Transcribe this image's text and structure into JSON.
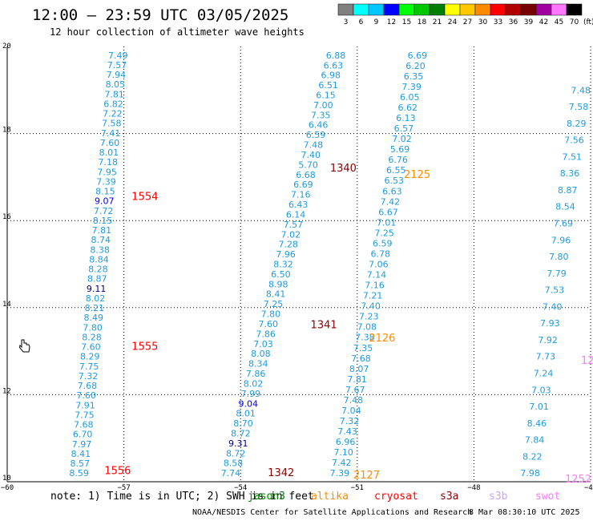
{
  "title": "12:00 – 23:59 UTC 03/05/2025",
  "subtitle": "12 hour collection of altimeter wave heights",
  "note": "note: 1) Time is in UTC; 2) SWH is in feet",
  "credit": "NOAA/NESDIS Center for Satellite Applications and Research",
  "credit_date": "8 Mar 08:30:10 UTC 2025",
  "missions": [
    {
      "name": "jason3",
      "label": "jason3",
      "color": "#008000"
    },
    {
      "name": "altika",
      "label": "altika",
      "color": "#ff8c00"
    },
    {
      "name": "cryosat",
      "label": "cryosat",
      "color": "#ff0000"
    },
    {
      "name": "s3a",
      "label": "s3a",
      "color": "#8b0000"
    },
    {
      "name": "s3b",
      "label": "s3b",
      "color": "#c8a2ff"
    },
    {
      "name": "swot",
      "label": "swot",
      "color": "#ff77ff"
    }
  ],
  "colorbar": {
    "unit": "(ft)",
    "thresholds": [
      "3",
      "6",
      "9",
      "12",
      "15",
      "18",
      "21",
      "24",
      "27",
      "30",
      "33",
      "36",
      "39",
      "42",
      "45",
      "70"
    ],
    "colors": [
      "#808080",
      "#00ffff",
      "#00c8ff",
      "#0000ff",
      "#00ff00",
      "#00c800",
      "#008000",
      "#ffff00",
      "#ffc800",
      "#ff8c00",
      "#ff0000",
      "#b00000",
      "#780000",
      "#a000a0",
      "#ff77ff",
      "#000000"
    ]
  },
  "chart_data": {
    "type": "scatter",
    "xlabel": "",
    "ylabel": "",
    "xlim": [
      -60,
      -45
    ],
    "ylim": [
      10,
      20
    ],
    "xticks": [
      -60,
      -57,
      -54,
      -51,
      -48,
      -45
    ],
    "yticks": [
      10,
      12,
      14,
      16,
      18,
      20
    ],
    "xtick_labels": [
      "−60",
      "−57",
      "−54",
      "−51",
      "−48",
      "−45"
    ],
    "ytick_labels": [
      "10",
      "12",
      "14",
      "16",
      "18",
      "20"
    ],
    "grid": true,
    "tracks": [
      {
        "pass": "1554",
        "pass_color": "#ff0000",
        "label_at": [
          -56.8,
          16.55
        ],
        "start": [
          -56.9,
          19.8
        ],
        "end": [
          -57.9,
          10.2
        ],
        "values": [
          "7.49",
          "7.57",
          "7.94",
          "8.05",
          "7.81",
          "6.82",
          "7.22",
          "7.58",
          "7.41",
          "7.60",
          "8.01",
          "7.18",
          "7.95",
          "7.39",
          "8.15",
          "9.07",
          "7.72",
          "8.15",
          "7.81",
          "8.74",
          "8.38",
          "8.84",
          "8.28",
          "8.87",
          "9.11",
          "8.02",
          "8.21",
          "8.49",
          "7.80",
          "8.28",
          "7.60",
          "8.29",
          "7.75",
          "7.32",
          "7.68",
          "7.60",
          "7.91",
          "7.75",
          "7.68",
          "6.70",
          "7.97",
          "8.41",
          "8.57",
          "8.59"
        ],
        "value_colors": {
          "9.07": "#0000ff",
          "9.11": "#000080"
        }
      },
      {
        "pass": "1555",
        "pass_color": "#ff0000",
        "label_at": [
          -56.8,
          13.1
        ]
      },
      {
        "pass": "1556",
        "pass_color": "#ff0000",
        "label_at": [
          -57.5,
          10.25
        ]
      },
      {
        "pass": "1340",
        "pass_color": "#8b0000",
        "label_at": [
          -51.7,
          17.2
        ],
        "start": [
          -51.3,
          19.8
        ],
        "end": [
          -54.0,
          10.2
        ],
        "values": [
          "6.88",
          "6.63",
          "6.98",
          "6.51",
          "6.15",
          "7.00",
          "7.35",
          "6.46",
          "6.59",
          "7.48",
          "7.40",
          "5.70",
          "6.68",
          "6.69",
          "7.16",
          "6.43",
          "6.14",
          "7.57",
          "7.02",
          "7.28",
          "7.96",
          "8.32",
          "6.50",
          "8.98",
          "8.41",
          "7.25",
          "7.80",
          "7.60",
          "7.86",
          "7.03",
          "8.08",
          "8.34",
          "7.86",
          "8.02",
          "7.99",
          "9.04",
          "8.01",
          "8.70",
          "8.72",
          "9.31",
          "8.72",
          "8.58",
          "7.74"
        ],
        "value_colors": {
          "9.04": "#0000ff",
          "9.31": "#000080"
        }
      },
      {
        "pass": "1341",
        "pass_color": "#8b0000",
        "label_at": [
          -52.2,
          13.6
        ]
      },
      {
        "pass": "1342",
        "pass_color": "#8b0000",
        "label_at": [
          -53.3,
          10.2
        ]
      },
      {
        "pass": "2125",
        "pass_color": "#ff8c00",
        "label_at": [
          -49.8,
          17.05
        ],
        "start": [
          -49.2,
          19.8
        ],
        "end": [
          -51.2,
          10.2
        ],
        "values": [
          "6.69",
          "6.20",
          "6.35",
          "7.39",
          "6.05",
          "6.62",
          "6.13",
          "6.57",
          "7.02",
          "5.69",
          "6.76",
          "6.55",
          "6.53",
          "6.63",
          "7.42",
          "6.67",
          "7.01",
          "7.25",
          "6.59",
          "6.78",
          "7.06",
          "7.14",
          "7.16",
          "7.21",
          "7.40",
          "7.23",
          "7.08",
          "7.38",
          "7.35",
          "7.68",
          "8.07",
          "7.81",
          "7.67",
          "7.48",
          "7.04",
          "7.32",
          "7.43",
          "6.96",
          "7.10",
          "7.42",
          "7.39"
        ],
        "value_colors": {}
      },
      {
        "pass": "2126",
        "pass_color": "#ff8c00",
        "label_at": [
          -50.7,
          13.3
        ]
      },
      {
        "pass": "2127",
        "pass_color": "#ff8c00",
        "label_at": [
          -51.1,
          10.15
        ]
      },
      {
        "pass": "",
        "pass_color": "#ff77ff",
        "label_at": [
          -45.2,
          13.0
        ],
        "start": [
          -45.0,
          19.0
        ],
        "end": [
          -46.3,
          10.2
        ],
        "values": [
          "7.48",
          "7.58",
          "8.29",
          "7.56",
          "7.51",
          "8.36",
          "8.87",
          "8.54",
          "7.69",
          "7.96",
          "7.80",
          "7.79",
          "7.53",
          "7.40",
          "7.93",
          "7.92",
          "7.73",
          "7.24",
          "7.03",
          "7.01",
          "8.46",
          "7.84",
          "8.22",
          "7.98"
        ],
        "value_colors": {}
      }
    ],
    "partial_labels": [
      "12",
      "1252"
    ]
  }
}
